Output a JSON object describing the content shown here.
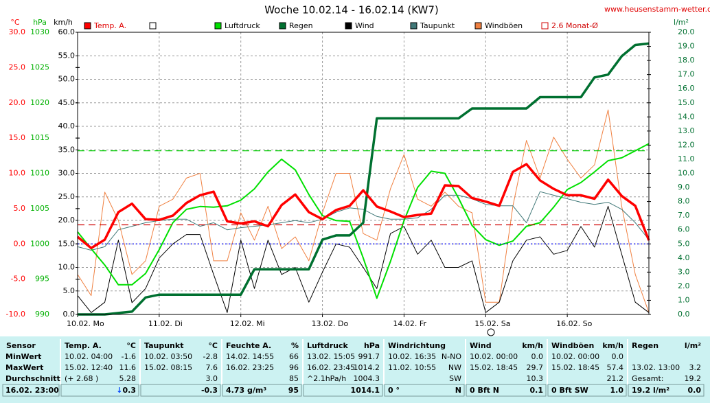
{
  "chart_data": {
    "type": "line",
    "title": "Woche 10.02.14 - 16.02.14 (KW7)",
    "source": "www.heusenstamm-wetter.de",
    "x": [
      0,
      4,
      8,
      12,
      16,
      20,
      24,
      28,
      32,
      36,
      40,
      44,
      48,
      52,
      56,
      60,
      64,
      68,
      72,
      76,
      80,
      84,
      88,
      92,
      96,
      100,
      104,
      108,
      112,
      116,
      120,
      124,
      128,
      132,
      136,
      140,
      144,
      148,
      152,
      156,
      160,
      164,
      168
    ],
    "xlim": [
      0,
      168
    ],
    "xticks": [
      {
        "value": 0,
        "label": "10.02. Mo"
      },
      {
        "value": 24,
        "label": "11.02. Di"
      },
      {
        "value": 48,
        "label": "12.02. Mi"
      },
      {
        "value": 72,
        "label": "13.02. Do"
      },
      {
        "value": 96,
        "label": "14.02. Fr"
      },
      {
        "value": 120,
        "label": "15.02. Sa"
      },
      {
        "value": 144,
        "label": "16.02. So"
      }
    ],
    "xgrid": true,
    "axes": [
      {
        "label": "°C",
        "color": "#ff0000",
        "lim": [
          -10,
          30
        ],
        "ticks": [
          {
            "value": -10,
            "label": "-10.0"
          },
          {
            "value": -5,
            "label": "-5.0"
          },
          {
            "value": 0,
            "label": "0.0"
          },
          {
            "value": 5,
            "label": "5.0"
          },
          {
            "value": 10,
            "label": "10.0"
          },
          {
            "value": 15,
            "label": "15.0"
          },
          {
            "value": 20,
            "label": "20.0"
          },
          {
            "value": 25,
            "label": "25.0"
          },
          {
            "value": 30,
            "label": "30.0"
          }
        ]
      },
      {
        "label": "hPa",
        "color": "#00b000",
        "lim": [
          990,
          1030
        ],
        "ticks": [
          990,
          995,
          1000,
          1005,
          1010,
          1015,
          1020,
          1025,
          1030
        ]
      },
      {
        "label": "km/h",
        "color": "#000000",
        "lim": [
          0,
          60
        ],
        "grid": true,
        "ticks": [
          {
            "value": 0,
            "label": "0.0"
          },
          {
            "value": 5,
            "label": "5.0"
          },
          {
            "value": 10,
            "label": "10.0"
          },
          {
            "value": 15,
            "label": "15.0"
          },
          {
            "value": 20,
            "label": "20.0"
          },
          {
            "value": 25,
            "label": "25.0"
          },
          {
            "value": 30,
            "label": "30.0"
          },
          {
            "value": 35,
            "label": "35.0"
          },
          {
            "value": 40,
            "label": "40.0"
          },
          {
            "value": 45,
            "label": "45.0"
          },
          {
            "value": 50,
            "label": "50.0"
          },
          {
            "value": 55,
            "label": "55.0"
          },
          {
            "value": 60,
            "label": "60.0"
          }
        ]
      },
      {
        "label": "l/m²",
        "color": "#007030",
        "lim": [
          0,
          20
        ],
        "ticks": [
          {
            "value": 0,
            "label": "0.0"
          },
          {
            "value": 1,
            "label": "1.0"
          },
          {
            "value": 2,
            "label": "2.0"
          },
          {
            "value": 3,
            "label": "3.0"
          },
          {
            "value": 4,
            "label": "4.0"
          },
          {
            "value": 5,
            "label": "5.0"
          },
          {
            "value": 6,
            "label": "6.0"
          },
          {
            "value": 7,
            "label": "7.0"
          },
          {
            "value": 8,
            "label": "8.0"
          },
          {
            "value": 9,
            "label": "9.0"
          },
          {
            "value": 10,
            "label": "10.0"
          },
          {
            "value": 11,
            "label": "11.0"
          },
          {
            "value": 12,
            "label": "12.0"
          },
          {
            "value": 13,
            "label": "13.0"
          },
          {
            "value": 14,
            "label": "14.0"
          },
          {
            "value": 15,
            "label": "15.0"
          },
          {
            "value": 16,
            "label": "16.0"
          },
          {
            "value": 17,
            "label": "17.0"
          },
          {
            "value": 18,
            "label": "18.0"
          },
          {
            "value": 19,
            "label": "19.0"
          },
          {
            "value": 20,
            "label": "20.0"
          }
        ]
      }
    ],
    "series": [
      {
        "name": "Temp. A.",
        "color": "#ff0000",
        "axis": "°C",
        "width": 3.5,
        "values": [
          1.0,
          -0.6,
          0.6,
          4.5,
          5.7,
          3.5,
          3.4,
          4.0,
          5.8,
          6.9,
          7.4,
          3.2,
          2.9,
          3.2,
          2.5,
          5.5,
          7.0,
          4.5,
          3.5,
          4.8,
          5.4,
          7.6,
          5.3,
          4.6,
          3.8,
          4.1,
          4.3,
          8.3,
          8.2,
          6.5,
          6.0,
          5.4,
          10.2,
          11.3,
          9.0,
          7.8,
          6.9,
          6.9,
          6.4,
          9.1,
          6.8,
          5.4,
          0.5
        ]
      },
      {
        "name": "Luftdruck",
        "color": "#00e000",
        "axis": "hPa",
        "width": 2,
        "values": [
          1001.7,
          999.3,
          997.0,
          994.2,
          994.2,
          995.8,
          999.2,
          1003.0,
          1004.9,
          1005.3,
          1005.2,
          1005.4,
          1006.2,
          1007.8,
          1010.2,
          1012.0,
          1010.5,
          1007.0,
          1004.0,
          1003.3,
          1003.2,
          998.0,
          992.3,
          997.5,
          1003.3,
          1008.0,
          1010.3,
          1010.0,
          1006.5,
          1002.6,
          1000.6,
          999.8,
          1000.4,
          1002.5,
          1003.0,
          1005.2,
          1007.7,
          1008.7,
          1010.2,
          1011.8,
          1012.2,
          1013.2,
          1014.2
        ]
      },
      {
        "name": "Regen",
        "color": "#007030",
        "axis": "l/m²",
        "width": 3.5,
        "values": [
          0,
          0,
          0,
          0.1,
          0.2,
          1.2,
          1.4,
          1.4,
          1.4,
          1.4,
          1.4,
          1.4,
          1.4,
          3.2,
          3.2,
          3.2,
          3.2,
          3.2,
          5.3,
          5.6,
          5.6,
          6.5,
          13.9,
          13.9,
          13.9,
          13.9,
          13.9,
          13.9,
          13.9,
          14.6,
          14.6,
          14.6,
          14.6,
          14.6,
          15.4,
          15.4,
          15.4,
          15.4,
          16.8,
          17.0,
          18.3,
          19.1,
          19.2
        ]
      },
      {
        "name": "Wind",
        "color": "#000000",
        "axis": "km/h",
        "width": 1,
        "values": [
          4.0,
          0.4,
          2.6,
          15.8,
          2.5,
          5.5,
          12.0,
          15.0,
          17.0,
          17.0,
          8.5,
          0.4,
          15.8,
          5.5,
          15.8,
          8.5,
          10.0,
          2.6,
          9.0,
          15.0,
          14.3,
          10.0,
          5.5,
          17.2,
          18.7,
          12.8,
          15.8,
          10.0,
          10.0,
          11.4,
          0.4,
          2.6,
          11.4,
          15.8,
          16.5,
          12.8,
          13.6,
          18.7,
          14.3,
          23.0,
          12.8,
          2.6,
          0.4
        ]
      },
      {
        "name": "Taupunkt",
        "color": "#407878",
        "axis": "°C",
        "width": 1,
        "values": [
          -0.4,
          -0.9,
          -0.4,
          2.0,
          2.5,
          3.0,
          3.3,
          3.5,
          3.5,
          2.5,
          3.0,
          2.0,
          2.3,
          2.5,
          2.7,
          3.0,
          3.3,
          3.0,
          3.5,
          4.5,
          5.1,
          4.9,
          3.9,
          3.5,
          3.5,
          3.7,
          4.9,
          6.9,
          6.9,
          6.4,
          5.6,
          5.4,
          5.4,
          3.0,
          7.4,
          6.9,
          6.4,
          5.9,
          5.6,
          5.9,
          4.9,
          3.0,
          0.6
        ]
      },
      {
        "name": "Windböen",
        "color": "#f08040",
        "axis": "km/h",
        "width": 1,
        "values": [
          8.5,
          4.0,
          26,
          20,
          8.5,
          11.4,
          23,
          24.5,
          29,
          30,
          11.4,
          11.4,
          21.6,
          15.8,
          23,
          14,
          16.5,
          11.4,
          21.6,
          30,
          30,
          17.2,
          15.8,
          26.7,
          34,
          24.5,
          23,
          26,
          23,
          21.6,
          2.6,
          2.6,
          23,
          37,
          29,
          37.7,
          33,
          29,
          31.8,
          43.5,
          23,
          8.5,
          0.4
        ]
      }
    ],
    "reference_lines": [
      {
        "name": "2.6 Monat-Ø",
        "value": 2.7,
        "axis": "°C",
        "color": "#d00000",
        "dash": "10 6"
      },
      {
        "value": 1013.2,
        "axis": "hPa",
        "color": "#00d000",
        "dash": "10 6"
      },
      {
        "value": 0,
        "axis": "°C",
        "color": "#0000ff",
        "dash": "2 3"
      }
    ]
  },
  "table": {
    "columns": [
      {
        "title": "Sensor"
      },
      {
        "title": "Temp. A.",
        "unit": "°C"
      },
      {
        "title": "Taupunkt",
        "unit": "°C"
      },
      {
        "title": "Feuchte A.",
        "unit": "%"
      },
      {
        "title": "Luftdruck",
        "unit": "hPa"
      },
      {
        "title": "Windrichtung"
      },
      {
        "title": "Wind",
        "unit": "km/h"
      },
      {
        "title": "Windböen",
        "unit": "km/h"
      },
      {
        "title": "Regen",
        "unit": "l/m²"
      }
    ],
    "rows": [
      {
        "label": "MinWert",
        "cells": [
          {
            "left": "10.02. 04:00",
            "right": "-1.6"
          },
          {
            "left": "10.02. 03:50",
            "right": "-2.8"
          },
          {
            "left": "14.02. 14:55",
            "right": "66"
          },
          {
            "left": "13.02. 15:05",
            "right": "991.7"
          },
          {
            "left": "10.02. 16:35",
            "right": "N-NO"
          },
          {
            "left": "10.02. 00:00",
            "right": "0.0"
          },
          {
            "left": "10.02. 00:00",
            "right": "0.0"
          },
          {}
        ]
      },
      {
        "label": "MaxWert",
        "cells": [
          {
            "left": "15.02. 12:40",
            "right": "11.6"
          },
          {
            "left": "15.02. 08:15",
            "right": "7.6"
          },
          {
            "left": "16.02. 23:25",
            "right": "96"
          },
          {
            "left": "16.02. 23:45",
            "right": "1014.2"
          },
          {
            "left": "11.02. 10:55",
            "right": "NW"
          },
          {
            "left": "15.02. 18:45",
            "right": "29.7"
          },
          {
            "left": "15.02. 18:45",
            "right": "57.4"
          },
          {
            "left": "13.02. 13:00",
            "right": "3.2"
          }
        ]
      },
      {
        "label": "Durchschnitt",
        "cells": [
          {
            "left": "(+ 2.68 )",
            "right": "5.28"
          },
          {
            "right": "3.0"
          },
          {
            "right": "85"
          },
          {
            "left": "^2.1hPa/h",
            "right": "1004.3"
          },
          {
            "right": "SW"
          },
          {
            "right": "10.3"
          },
          {
            "right": "21.2"
          },
          {
            "left": "Gesamt:",
            "right": "19.2"
          }
        ]
      }
    ],
    "current": {
      "label": "16.02. 23:00",
      "cells": [
        {
          "arrow": "↓",
          "right": "0.3"
        },
        {
          "right": "-0.3"
        },
        {
          "left": "4.73 g/m³",
          "right": "95"
        },
        {
          "right": "1014.1"
        },
        {
          "left": "0 °",
          "right": "N"
        },
        {
          "left": "0 Bft N",
          "right": "0.1"
        },
        {
          "left": "0 Bft SW",
          "right": "1.0"
        },
        {
          "left": "19.2 l/m²",
          "right": "0.0"
        }
      ]
    }
  }
}
